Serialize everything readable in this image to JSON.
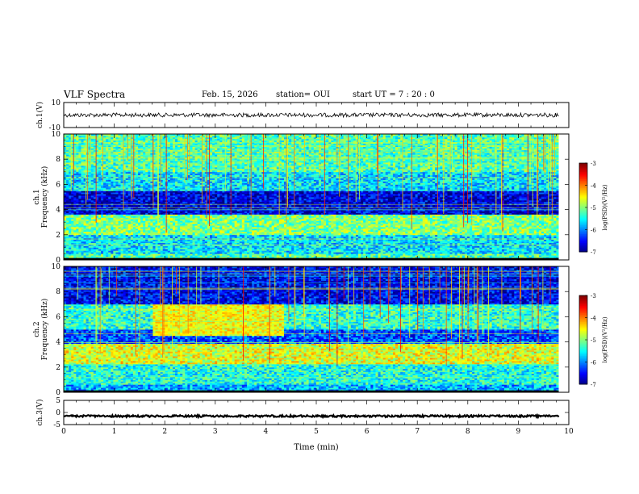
{
  "header": {
    "title": "VLF Spectra",
    "date": "Feb. 15, 2026",
    "station": "station= OUI",
    "start": "start  UT =   7 : 20 : 0"
  },
  "chart_data": {
    "type": "heatmap",
    "xlabel": "Time  (min)",
    "xlim": [
      0,
      10
    ],
    "xticks": [
      "0",
      "1",
      "2",
      "3",
      "4",
      "5",
      "6",
      "7",
      "8",
      "9",
      "10"
    ],
    "panels": [
      {
        "id": "ch1-waveform",
        "type": "line",
        "ylabel": "ch.1(V)",
        "ylim": [
          -10,
          10
        ],
        "yticks": [
          "10",
          "-10"
        ],
        "series_level": 0,
        "data_end_min": 9.8
      },
      {
        "id": "ch1-spectrogram",
        "type": "heatmap",
        "ylabel_top": "ch.1",
        "ylabel": "Frequency  (kHz)",
        "ylim": [
          0,
          10
        ],
        "yticks": [
          "0",
          "2",
          "4",
          "6",
          "8",
          "10"
        ],
        "colorbar": {
          "label": "log(PSD)(V²/Hz)",
          "range": [
            -7,
            -3
          ],
          "ticks": [
            "-3",
            "-4",
            "-5",
            "-6",
            "-7"
          ]
        },
        "bands": [
          {
            "from": 0.0,
            "to": 0.5,
            "level": 0.45
          },
          {
            "from": 0.5,
            "to": 2.0,
            "level": 0.35
          },
          {
            "from": 2.0,
            "to": 3.6,
            "level": 0.5
          },
          {
            "from": 3.6,
            "to": 5.5,
            "level": 0.1
          },
          {
            "from": 5.5,
            "to": 7.0,
            "level": 0.35
          },
          {
            "from": 7.0,
            "to": 10.0,
            "level": 0.45
          }
        ]
      },
      {
        "id": "ch2-spectrogram",
        "type": "heatmap",
        "ylabel_top": "ch.2",
        "ylabel": "Frequency  (kHz)",
        "ylim": [
          0,
          10
        ],
        "yticks": [
          "0",
          "2",
          "4",
          "6",
          "8",
          "10"
        ],
        "colorbar": {
          "label": "log(PSD)(V²/Hz)",
          "range": [
            -7,
            -3
          ],
          "ticks": [
            "-3",
            "-4",
            "-5",
            "-6",
            "-7"
          ]
        },
        "bands": [
          {
            "from": 0.0,
            "to": 0.6,
            "level": 0.3
          },
          {
            "from": 0.6,
            "to": 2.2,
            "level": 0.4
          },
          {
            "from": 2.2,
            "to": 3.8,
            "level": 0.6
          },
          {
            "from": 3.8,
            "to": 5.0,
            "level": 0.2
          },
          {
            "from": 5.0,
            "to": 7.0,
            "level": 0.42
          },
          {
            "from": 7.0,
            "to": 10.0,
            "level": 0.12
          }
        ],
        "enhancement": {
          "t_from": 1.75,
          "t_to": 4.35,
          "f_from": 4.5,
          "f_to": 7.0,
          "level": 0.62
        }
      },
      {
        "id": "ch3-waveform",
        "type": "line",
        "ylabel": "ch.3(V)",
        "ylim": [
          -5,
          5
        ],
        "yticks": [
          "5",
          "0",
          "-5"
        ],
        "series_level": -1.5,
        "data_end_min": 9.8
      }
    ]
  }
}
